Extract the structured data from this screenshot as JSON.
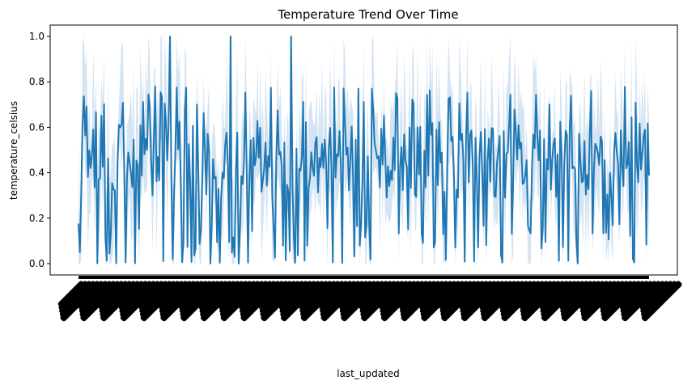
{
  "chart_data": {
    "type": "line",
    "title": "Temperature Trend Over Time",
    "xlabel": "last_updated",
    "ylabel": "temperature_celsius",
    "ylim": [
      -0.05,
      1.05
    ],
    "yticks": [
      "0.0",
      "0.2",
      "0.4",
      "0.6",
      "0.8",
      "1.0"
    ],
    "x_tick_labels_legible": false,
    "x_tick_rotation_deg": 45,
    "grid": false,
    "legend": "none",
    "series": [
      {
        "kind": "mean-line-with-confidence-band",
        "color": "#1f77b4",
        "band_color": "#c6dbef",
        "samples_shown": 425,
        "typical_range": [
          0.3,
          0.65
        ],
        "min": 0.0,
        "max": 1.0,
        "spikes_to_max_approx": 4
      }
    ]
  }
}
